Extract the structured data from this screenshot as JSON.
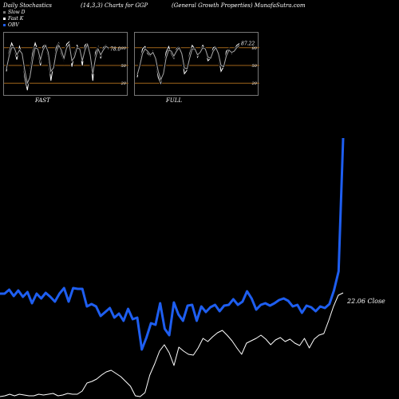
{
  "header": {
    "title": "Daily Stochastics",
    "params": "(14,3,3) Charts for GGP",
    "company": "(General Growth Properties) MunafaSutra.com"
  },
  "legend": [
    {
      "label": "Slow D",
      "color": "#777777"
    },
    {
      "label": "Fast K",
      "color": "#ffffff"
    },
    {
      "label": "OBV",
      "color": "#1e5ef0"
    }
  ],
  "colors": {
    "obv": "#1e5ef0",
    "price": "#ffffff",
    "gridline": "#a0651a",
    "slow": "#777777"
  },
  "panels": {
    "fast": {
      "label": "FAST",
      "value_label": "78.0"
    },
    "full": {
      "label": "FULL",
      "value_label": "87.22"
    },
    "ticks": [
      "80",
      "50",
      "20"
    ]
  },
  "main": {
    "close_label": "22.06 Close"
  },
  "chart_data": [
    {
      "type": "line",
      "title": "FAST",
      "ylim": [
        0,
        100
      ],
      "levels": [
        80,
        50,
        20
      ],
      "series": [
        {
          "name": "Fast K",
          "values": [
            40,
            72,
            88,
            78,
            60,
            82,
            68,
            30,
            8,
            38,
            70,
            88,
            75,
            50,
            82,
            86,
            64,
            24,
            52,
            80,
            88,
            70,
            58,
            86,
            90,
            48,
            70,
            84,
            75,
            50,
            84,
            88,
            62,
            24,
            72,
            82,
            62,
            80,
            84,
            78
          ]
        },
        {
          "name": "Slow D",
          "values": [
            44,
            65,
            80,
            80,
            68,
            76,
            70,
            42,
            20,
            30,
            58,
            80,
            78,
            60,
            76,
            84,
            72,
            40,
            46,
            72,
            84,
            76,
            62,
            80,
            86,
            58,
            64,
            80,
            78,
            58,
            76,
            86,
            68,
            36,
            62,
            78,
            68,
            76,
            82,
            80
          ]
        }
      ]
    },
    {
      "type": "line",
      "title": "FULL",
      "ylim": [
        0,
        100
      ],
      "levels": [
        80,
        50,
        20
      ],
      "series": [
        {
          "name": "Full K",
          "values": [
            30,
            55,
            78,
            82,
            70,
            66,
            74,
            58,
            30,
            20,
            40,
            72,
            82,
            70,
            62,
            78,
            82,
            66,
            36,
            42,
            70,
            84,
            78,
            64,
            74,
            84,
            76,
            58,
            62,
            80,
            82,
            66,
            40,
            48,
            74,
            78,
            70,
            76,
            84,
            87
          ]
        },
        {
          "name": "Full D",
          "values": [
            34,
            50,
            70,
            78,
            74,
            68,
            72,
            62,
            40,
            26,
            36,
            62,
            76,
            74,
            66,
            74,
            80,
            70,
            46,
            44,
            62,
            78,
            78,
            68,
            72,
            80,
            78,
            64,
            62,
            74,
            80,
            70,
            50,
            48,
            66,
            76,
            72,
            74,
            80,
            84
          ]
        }
      ]
    },
    {
      "type": "line",
      "title": "OBV",
      "series": [
        {
          "name": "OBV",
          "values": [
            368,
            368,
            363,
            371,
            364,
            372,
            366,
            380,
            368,
            374,
            367,
            372,
            378,
            368,
            361,
            378,
            361,
            362,
            362,
            384,
            381,
            384,
            396,
            391,
            386,
            398,
            393,
            402,
            387,
            400,
            398,
            438,
            423,
            405,
            407,
            380,
            412,
            420,
            379,
            394,
            402,
            383,
            382,
            402,
            384,
            391,
            385,
            382,
            390,
            383,
            382,
            375,
            382,
            378,
            365,
            374,
            388,
            382,
            380,
            383,
            380,
            376,
            374,
            377,
            384,
            382,
            392,
            383,
            385,
            390,
            384,
            386,
            381,
            364,
            340,
            173
          ]
        }
      ]
    },
    {
      "type": "line",
      "title": "Price",
      "series": [
        {
          "name": "Close",
          "values": [
            497,
            496,
            494,
            496,
            494,
            495,
            496,
            496,
            494,
            495,
            494,
            493,
            496,
            495,
            493,
            494,
            494,
            490,
            480,
            478,
            475,
            470,
            466,
            464,
            468,
            472,
            478,
            484,
            496,
            497,
            492,
            470,
            456,
            440,
            432,
            442,
            458,
            435,
            440,
            444,
            445,
            436,
            424,
            428,
            422,
            417,
            414,
            420,
            427,
            436,
            444,
            430,
            427,
            424,
            420,
            425,
            432,
            426,
            423,
            428,
            425,
            430,
            433,
            424,
            436,
            425,
            420,
            418,
            402,
            384,
            370,
            367
          ]
        }
      ]
    }
  ]
}
